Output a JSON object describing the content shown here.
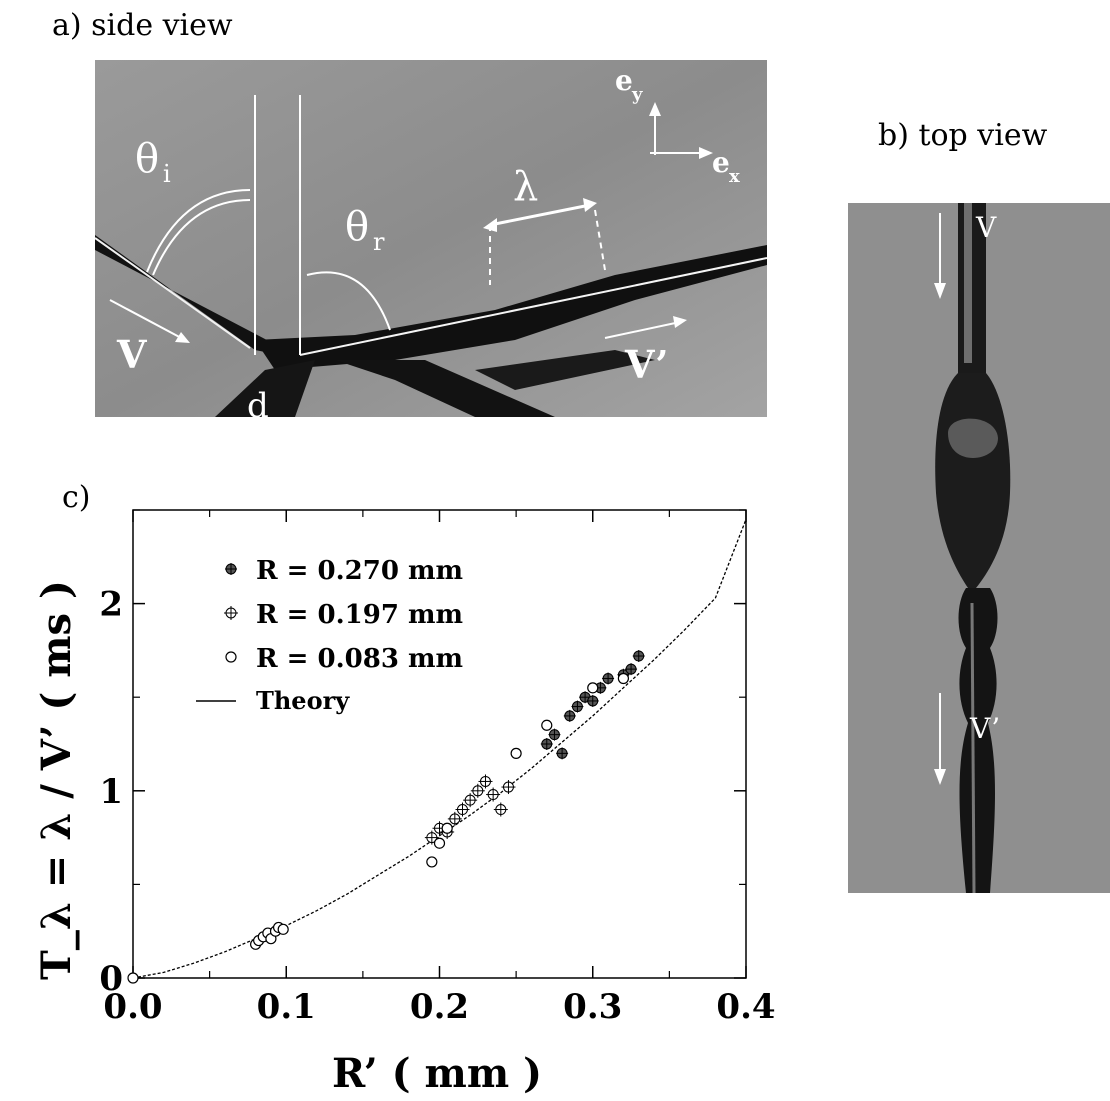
{
  "panel_a": {
    "label": "a) side view",
    "theta_i": "θ",
    "theta_i_sub": "i",
    "theta_r": "θ",
    "theta_r_sub": "r",
    "lambda": "λ",
    "ey": "e",
    "ey_sub": "y",
    "ex": "e",
    "ex_sub": "x",
    "v": "V",
    "v_prime": "V’",
    "d": "d"
  },
  "panel_b": {
    "label": "b) top view",
    "v": "V",
    "v_prime": "V’"
  },
  "panel_c_label": "c)",
  "chart_data": {
    "type": "scatter",
    "xlabel": "R’ ( mm )",
    "ylabel": "T_λ = λ / V’ ( ms )",
    "xlim": [
      0.0,
      0.4
    ],
    "ylim": [
      0,
      2.5
    ],
    "xticks": [
      "0.0",
      "0.1",
      "0.2",
      "0.3",
      "0.4"
    ],
    "yticks": [
      "0",
      "1",
      "2"
    ],
    "legend_placement": "top-left",
    "series": [
      {
        "name": "R = 0.270 mm",
        "marker": "filled-circle",
        "points": [
          [
            0.27,
            1.25
          ],
          [
            0.275,
            1.3
          ],
          [
            0.28,
            1.2
          ],
          [
            0.285,
            1.4
          ],
          [
            0.29,
            1.45
          ],
          [
            0.295,
            1.5
          ],
          [
            0.3,
            1.48
          ],
          [
            0.305,
            1.55
          ],
          [
            0.31,
            1.6
          ],
          [
            0.32,
            1.62
          ],
          [
            0.325,
            1.65
          ],
          [
            0.33,
            1.72
          ]
        ]
      },
      {
        "name": "R = 0.197 mm",
        "marker": "cross-circle",
        "points": [
          [
            0.195,
            0.75
          ],
          [
            0.2,
            0.8
          ],
          [
            0.205,
            0.78
          ],
          [
            0.21,
            0.85
          ],
          [
            0.215,
            0.9
          ],
          [
            0.22,
            0.95
          ],
          [
            0.225,
            1.0
          ],
          [
            0.23,
            1.05
          ],
          [
            0.235,
            0.98
          ],
          [
            0.24,
            0.9
          ],
          [
            0.245,
            1.02
          ]
        ]
      },
      {
        "name": "R = 0.083 mm",
        "marker": "open-circle",
        "points": [
          [
            0.0,
            0.0
          ],
          [
            0.08,
            0.18
          ],
          [
            0.082,
            0.2
          ],
          [
            0.085,
            0.22
          ],
          [
            0.088,
            0.24
          ],
          [
            0.09,
            0.21
          ],
          [
            0.093,
            0.25
          ],
          [
            0.095,
            0.27
          ],
          [
            0.098,
            0.26
          ],
          [
            0.195,
            0.62
          ],
          [
            0.2,
            0.72
          ],
          [
            0.205,
            0.8
          ],
          [
            0.25,
            1.2
          ],
          [
            0.27,
            1.35
          ],
          [
            0.3,
            1.55
          ],
          [
            0.32,
            1.6
          ]
        ]
      }
    ],
    "theory": {
      "name": "Theory",
      "x": [
        0.0,
        0.02,
        0.04,
        0.06,
        0.08,
        0.1,
        0.12,
        0.14,
        0.16,
        0.18,
        0.2,
        0.22,
        0.24,
        0.26,
        0.28,
        0.3,
        0.32,
        0.34,
        0.36,
        0.38,
        0.4
      ],
      "y": [
        0.0,
        0.03,
        0.08,
        0.14,
        0.21,
        0.28,
        0.36,
        0.45,
        0.55,
        0.65,
        0.76,
        0.87,
        0.99,
        1.12,
        1.26,
        1.4,
        1.55,
        1.7,
        1.86,
        2.03,
        2.45
      ]
    }
  }
}
